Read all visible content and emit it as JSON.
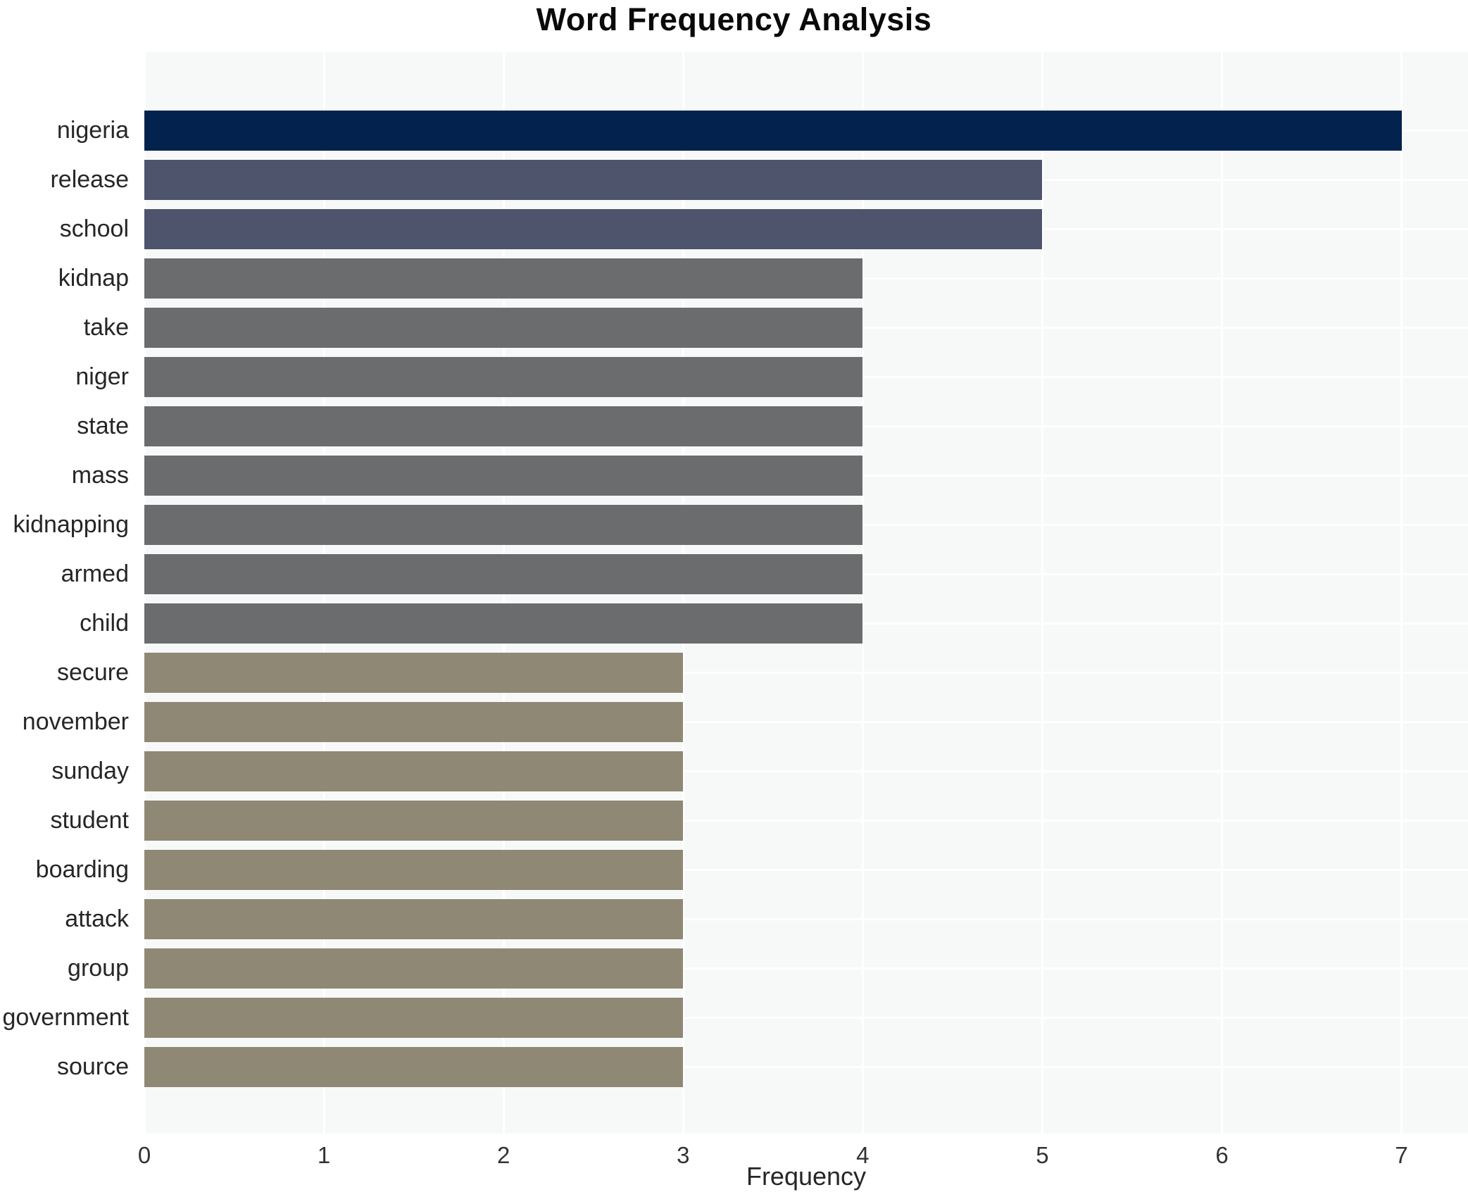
{
  "chart_data": {
    "type": "bar",
    "orientation": "horizontal",
    "title": "Word Frequency Analysis",
    "xlabel": "Frequency",
    "ylabel": "",
    "categories": [
      "nigeria",
      "release",
      "school",
      "kidnap",
      "take",
      "niger",
      "state",
      "mass",
      "kidnapping",
      "armed",
      "child",
      "secure",
      "november",
      "sunday",
      "student",
      "boarding",
      "attack",
      "group",
      "government",
      "source"
    ],
    "values": [
      7,
      5,
      5,
      4,
      4,
      4,
      4,
      4,
      4,
      4,
      4,
      3,
      3,
      3,
      3,
      3,
      3,
      3,
      3,
      3
    ],
    "xlim": [
      0,
      7.37
    ],
    "xticks": [
      0,
      1,
      2,
      3,
      4,
      5,
      6,
      7
    ],
    "grid": true,
    "legend": false,
    "panel_bg": "#f7f8f8",
    "grid_color": "#ffffff",
    "value_colors": {
      "7": "#03234e",
      "5": "#4d546c",
      "4": "#6b6c6e",
      "3": "#8e8875"
    },
    "bar_colors": [
      "#03234e",
      "#4d546c",
      "#4d546c",
      "#6b6c6e",
      "#6b6c6e",
      "#6b6c6e",
      "#6b6c6e",
      "#6b6c6e",
      "#6b6c6e",
      "#6b6c6e",
      "#6b6c6e",
      "#8e8875",
      "#8e8875",
      "#8e8875",
      "#8e8875",
      "#8e8875",
      "#8e8875",
      "#8e8875",
      "#8e8875",
      "#8e8875"
    ]
  }
}
